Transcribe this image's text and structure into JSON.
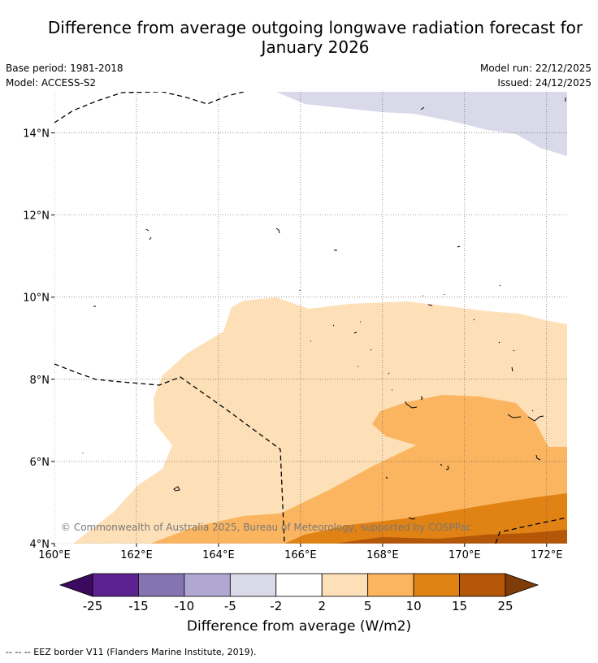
{
  "title": {
    "line1": "Difference from average outgoing longwave radiation forecast for",
    "line2": "January 2026"
  },
  "meta": {
    "base_period": "Base period: 1981-2018",
    "model": "Model: ACCESS-S2",
    "model_run": "Model run: 22/12/2025",
    "issued": "Issued: 24/12/2025"
  },
  "map": {
    "lon_range": [
      160,
      172.5
    ],
    "lat_range": [
      4,
      15
    ],
    "lon_ticks": [
      {
        "value": 160,
        "label": "160°E"
      },
      {
        "value": 162,
        "label": "162°E"
      },
      {
        "value": 164,
        "label": "164°E"
      },
      {
        "value": 166,
        "label": "166°E"
      },
      {
        "value": 168,
        "label": "168°E"
      },
      {
        "value": 170,
        "label": "170°E"
      },
      {
        "value": 172,
        "label": "172°E"
      }
    ],
    "lat_ticks": [
      {
        "value": 4,
        "label": "4°N"
      },
      {
        "value": 6,
        "label": "6°N"
      },
      {
        "value": 8,
        "label": "8°N"
      },
      {
        "value": 10,
        "label": "10°N"
      },
      {
        "value": 12,
        "label": "12°N"
      },
      {
        "value": 14,
        "label": "14°N"
      }
    ],
    "copyright": "© Commonwealth of Australia 2025, Bureau of Meteorology, supported by COSPPac"
  },
  "colorbar": {
    "label": "Difference from average (W/m2)",
    "ticks": [
      "-25",
      "-15",
      "-10",
      "-5",
      "-2",
      "2",
      "5",
      "10",
      "15",
      "25"
    ],
    "colors": [
      "#5c2390",
      "#8574b0",
      "#b0a8d3",
      "#d9d9ea",
      "#ffffff",
      "#fde0b7",
      "#fbb561",
      "#e08214",
      "#b45709"
    ],
    "extend_low": "#3b0a5e",
    "extend_high": "#7f3b08"
  },
  "footer": "--  --  -- EEZ border V11 (Flanders Marine Institute, 2019)."
}
